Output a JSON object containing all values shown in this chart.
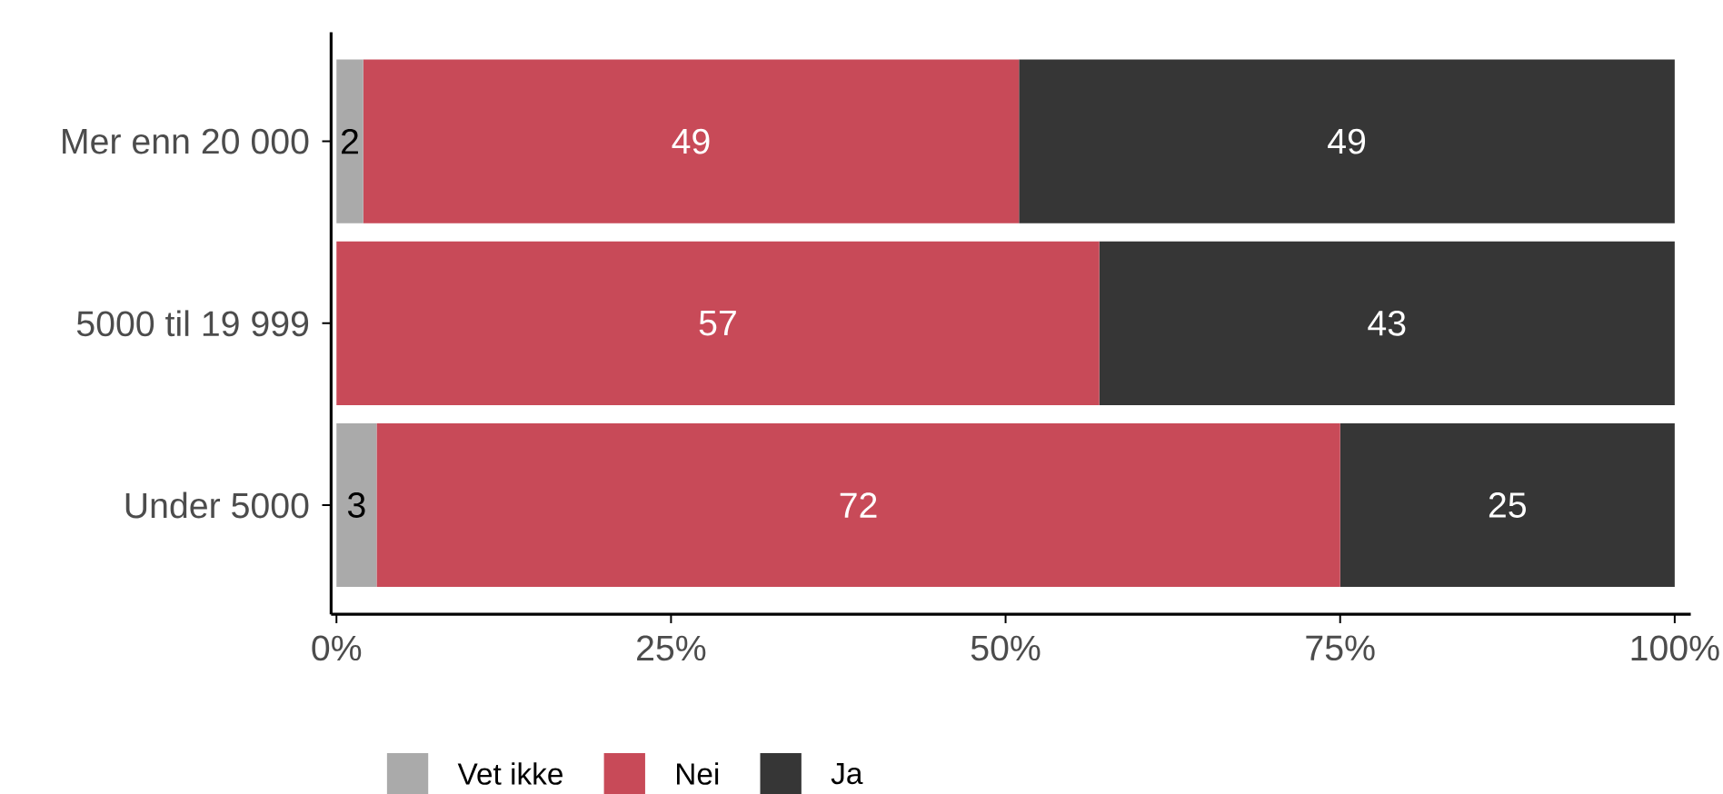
{
  "chart_data": {
    "type": "bar",
    "orientation": "horizontal",
    "stacked": true,
    "categories": [
      "Mer enn 20 000",
      "5000 til 19 999",
      "Under 5000"
    ],
    "series": [
      {
        "name": "Vet ikke",
        "color": "#aaaaaa",
        "values": [
          2,
          0,
          3
        ],
        "value_labels": [
          "2",
          null,
          "3"
        ]
      },
      {
        "name": "Nei",
        "color": "#c84a58",
        "values": [
          49,
          57,
          72
        ],
        "value_labels": [
          "49",
          "57",
          "72"
        ]
      },
      {
        "name": "Ja",
        "color": "#363636",
        "values": [
          49,
          43,
          25
        ],
        "value_labels": [
          "49",
          "43",
          "25"
        ]
      }
    ],
    "xlim": [
      -0.4,
      101.2
    ],
    "xticks": [
      {
        "value": 0,
        "label": "0%"
      },
      {
        "value": 25,
        "label": "25%"
      },
      {
        "value": 50,
        "label": "50%"
      },
      {
        "value": 75,
        "label": "75%"
      },
      {
        "value": 100,
        "label": "100%"
      }
    ],
    "legend": "bottom"
  }
}
